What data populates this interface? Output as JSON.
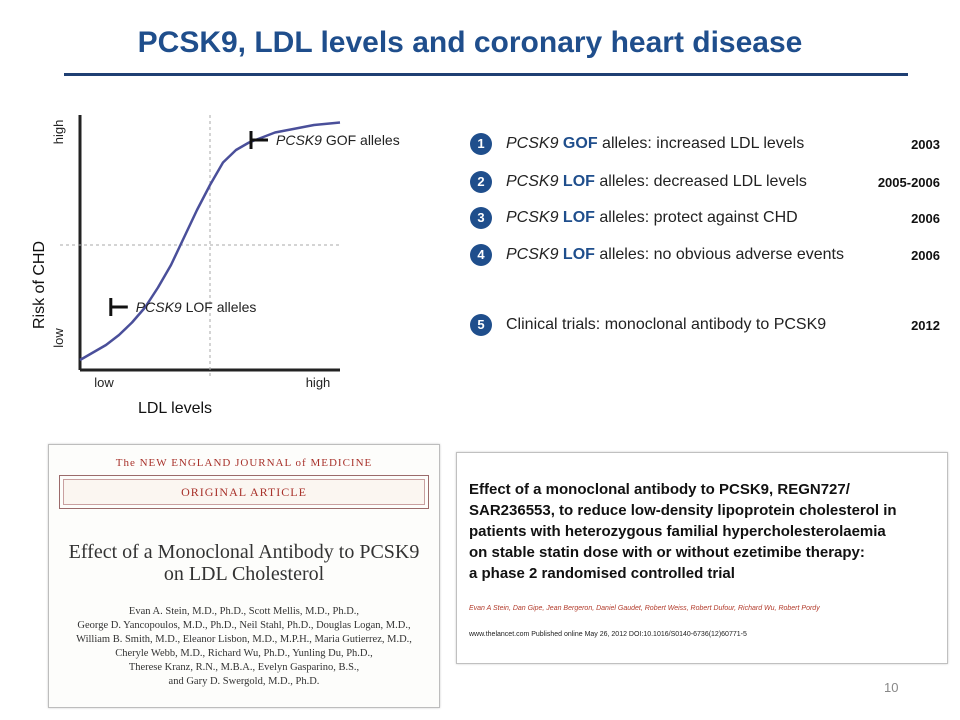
{
  "title": "PCSK9, LDL levels and coronary heart disease",
  "chart_data": {
    "type": "line",
    "xlabel": "LDL levels",
    "ylabel": "Risk of CHD",
    "x_ticks": [
      "low",
      "high"
    ],
    "y_ticks": [
      "low",
      "high"
    ],
    "xlim": [
      0,
      1
    ],
    "ylim": [
      0,
      1
    ],
    "series": [
      {
        "color": "#4a4f9a",
        "x": [
          0.0,
          0.05,
          0.1,
          0.15,
          0.2,
          0.25,
          0.3,
          0.35,
          0.4,
          0.45,
          0.5,
          0.55,
          0.6,
          0.65,
          0.7,
          0.75,
          0.8,
          0.85,
          0.9,
          0.95,
          1.0
        ],
        "y": [
          0.04,
          0.07,
          0.1,
          0.14,
          0.19,
          0.25,
          0.33,
          0.42,
          0.53,
          0.64,
          0.74,
          0.83,
          0.88,
          0.91,
          0.93,
          0.95,
          0.96,
          0.97,
          0.98,
          0.985,
          0.99
        ]
      }
    ],
    "reference_lines": {
      "x": 0.5,
      "y": 0.5
    },
    "annotations": [
      {
        "gene": "PCSK9",
        "label": "GOF alleles",
        "x": 0.6,
        "y": 0.88
      },
      {
        "gene": "PCSK9",
        "label": "LOF alleles",
        "x": 0.28,
        "y": 0.3
      }
    ]
  },
  "items": [
    {
      "num": "1",
      "gene": "PCSK9",
      "kw": "GOF",
      "text": " alleles: increased LDL levels",
      "year": "2003"
    },
    {
      "num": "2",
      "gene": "PCSK9",
      "kw": "LOF",
      "text": " alleles: decreased LDL levels",
      "year": "2005-2006"
    },
    {
      "num": "3",
      "gene": "PCSK9",
      "kw": "LOF",
      "text": " alleles: protect against CHD",
      "year": "2006"
    },
    {
      "num": "4",
      "gene": "PCSK9",
      "kw": "LOF",
      "text": " alleles: no obvious adverse events",
      "year": "2006"
    },
    {
      "num": "5",
      "text": "Clinical trials: monoclonal antibody to PCSK9",
      "year": "2012"
    }
  ],
  "nejm": {
    "journal": "The NEW ENGLAND JOURNAL of MEDICINE",
    "type": "ORIGINAL ARTICLE",
    "title_line1": "Effect of a Monoclonal Antibody to PCSK9",
    "title_line2": "on LDL Cholesterol",
    "authors": [
      "Evan A. Stein, M.D., Ph.D., Scott Mellis, M.D., Ph.D.,",
      "George D. Yancopoulos, M.D., Ph.D., Neil Stahl, Ph.D., Douglas Logan, M.D.,",
      "William B. Smith, M.D., Eleanor Lisbon, M.D., M.P.H., Maria Gutierrez, M.D.,",
      "Cheryle Webb, M.D., Richard Wu, Ph.D., Yunling Du, Ph.D.,",
      "Therese Kranz, R.N., M.B.A., Evelyn Gasparino, B.S.,",
      "and Gary D. Swergold, M.D., Ph.D."
    ]
  },
  "lancet": {
    "title_lines": [
      "Effect of a monoclonal antibody to PCSK9, REGN727/",
      "SAR236553, to reduce low-density lipoprotein cholesterol in",
      "patients with heterozygous familial hypercholesterolaemia",
      "on stable statin dose with or without ezetimibe therapy:",
      "a phase 2 randomised controlled trial"
    ],
    "authors": "Evan A Stein, Dan Gipe, Jean Bergeron, Daniel Gaudet, Robert Weiss, Robert Dufour, Richard Wu, Robert Pordy",
    "meta": "www.thelancet.com    Published online May 26, 2012    DOI:10.1016/S0140-6736(12)60771-5"
  },
  "page_number": "10"
}
